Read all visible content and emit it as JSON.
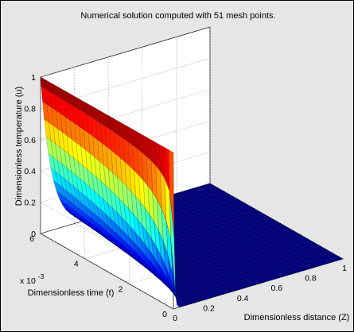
{
  "chart_data": {
    "type": "surface",
    "title": "Numerical solution computed with 51 mesh points.",
    "xlabel": "Dimensionless distance (Z)",
    "ylabel": "Dimensionless time (t)",
    "zlabel": "Dimensionless temperature (u)",
    "y_multiplier_label": "x 10",
    "y_multiplier_exponent": "-3",
    "xlim": [
      0,
      1
    ],
    "ylim": [
      0,
      0.006
    ],
    "zlim": [
      0,
      1
    ],
    "x_ticks": [
      "0",
      "0.2",
      "0.4",
      "0.6",
      "0.8",
      "1"
    ],
    "y_ticks": [
      "0",
      "2",
      "4",
      "6"
    ],
    "z_ticks": [
      "0",
      "0.2",
      "0.4",
      "0.6",
      "0.8",
      "1"
    ],
    "mesh_points": 51,
    "colormap": "jet",
    "grid": true,
    "surface_description": "u = 1 at Z = 0 for all t; u drops sharply to near 0 for Z > 0 at small t, with the transition front widening as t increases"
  }
}
